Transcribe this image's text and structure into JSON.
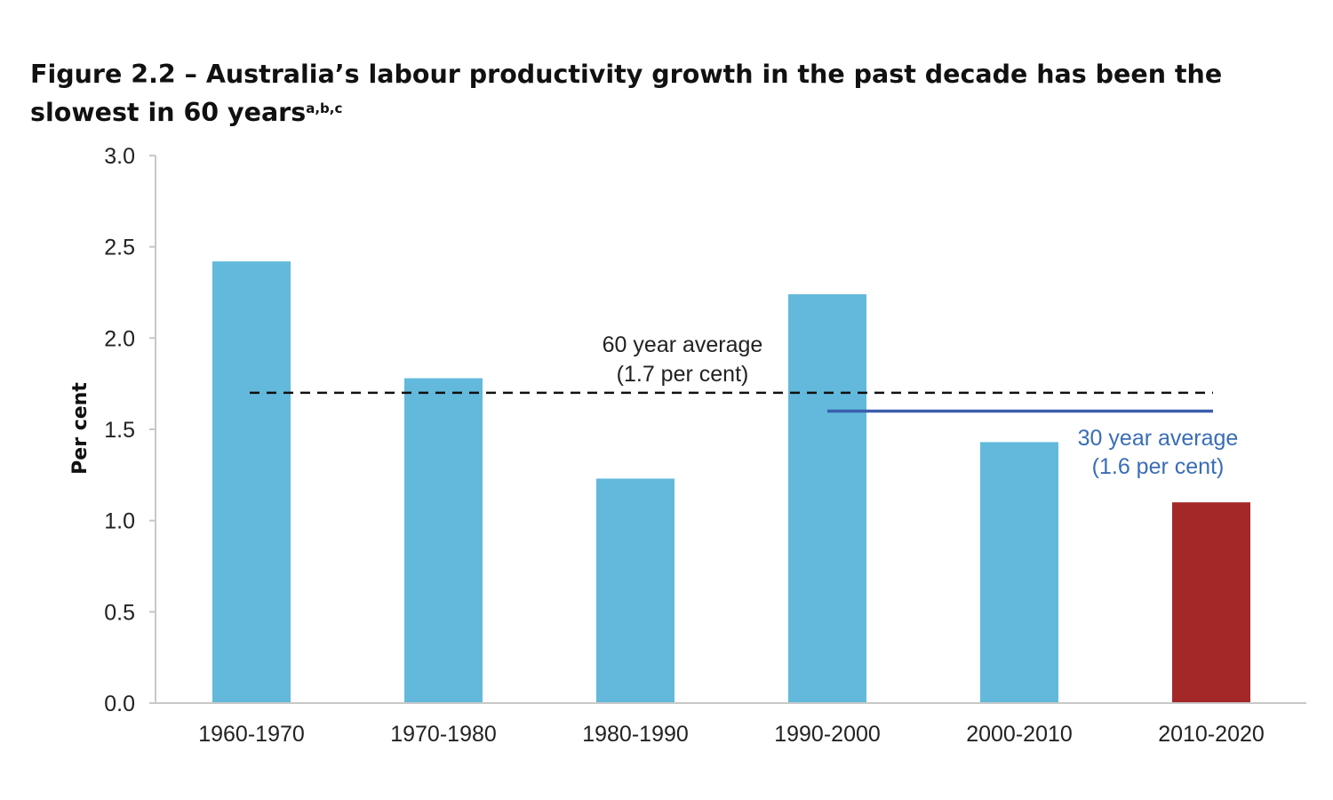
{
  "chart_data": {
    "type": "bar",
    "title": "Figure 2.2 – Australia’s labour productivity growth in the past decade has been the slowest in 60 years",
    "title_footnotes": "a,b,c",
    "xlabel": "",
    "ylabel": "Per cent",
    "ylim": [
      0,
      3.0
    ],
    "yticks": [
      "0.0",
      "0.5",
      "1.0",
      "1.5",
      "2.0",
      "2.5",
      "3.0"
    ],
    "categories": [
      "1960-1970",
      "1970-1980",
      "1980-1990",
      "1990-2000",
      "2000-2010",
      "2010-2020"
    ],
    "values": [
      2.42,
      1.78,
      1.23,
      2.24,
      1.43,
      1.1
    ],
    "bar_colors": [
      "#62b9dc",
      "#62b9dc",
      "#62b9dc",
      "#62b9dc",
      "#62b9dc",
      "#a42828"
    ],
    "reference_lines": [
      {
        "name": "60-year-average",
        "value": 1.7,
        "from_category": 0,
        "to_category": 5,
        "style": "dashed",
        "color": "#111111",
        "label_line1": "60 year average",
        "label_line2": "(1.7 per cent)",
        "label_color": "#222222"
      },
      {
        "name": "30-year-average",
        "value": 1.6,
        "from_category": 3,
        "to_category": 5,
        "style": "solid",
        "color": "#3a5fac",
        "label_line1": "30 year average",
        "label_line2": "(1.6 per cent)",
        "label_color": "#3a6db5"
      }
    ],
    "grid": false,
    "legend": "none"
  }
}
